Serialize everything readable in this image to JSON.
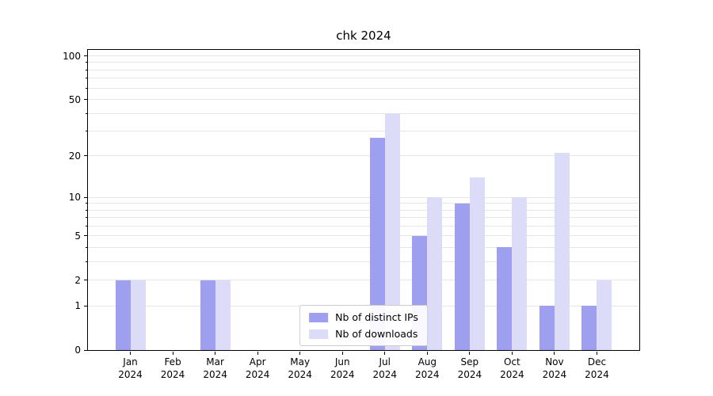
{
  "figure": {
    "background": "#ffffff"
  },
  "chart_data": {
    "type": "bar",
    "title": "chk 2024",
    "categories": [
      "Jan 2024",
      "Feb 2024",
      "Mar 2024",
      "Apr 2024",
      "May 2024",
      "Jun 2024",
      "Jul 2024",
      "Aug 2024",
      "Sep 2024",
      "Oct 2024",
      "Nov 2024",
      "Dec 2024"
    ],
    "series": [
      {
        "name": "Nb of distinct IPs",
        "color": "#9f9ff0",
        "values": [
          2,
          0,
          2,
          0,
          0,
          0,
          27,
          5,
          9,
          4,
          1,
          1
        ]
      },
      {
        "name": "Nb of downloads",
        "color": "#dcdcf8",
        "values": [
          2,
          0,
          2,
          0,
          0,
          0,
          40,
          10,
          14,
          10,
          21,
          2
        ]
      }
    ],
    "xlabel": "",
    "ylabel": "",
    "yscale": "log1p",
    "ylim": [
      0,
      110
    ],
    "yticks": [
      0,
      1,
      2,
      5,
      10,
      20,
      50,
      100
    ],
    "minor_gridlines": [
      3,
      4,
      6,
      7,
      8,
      9,
      30,
      40,
      60,
      70,
      80,
      90
    ],
    "grid": true,
    "legend_position": "lower center"
  }
}
